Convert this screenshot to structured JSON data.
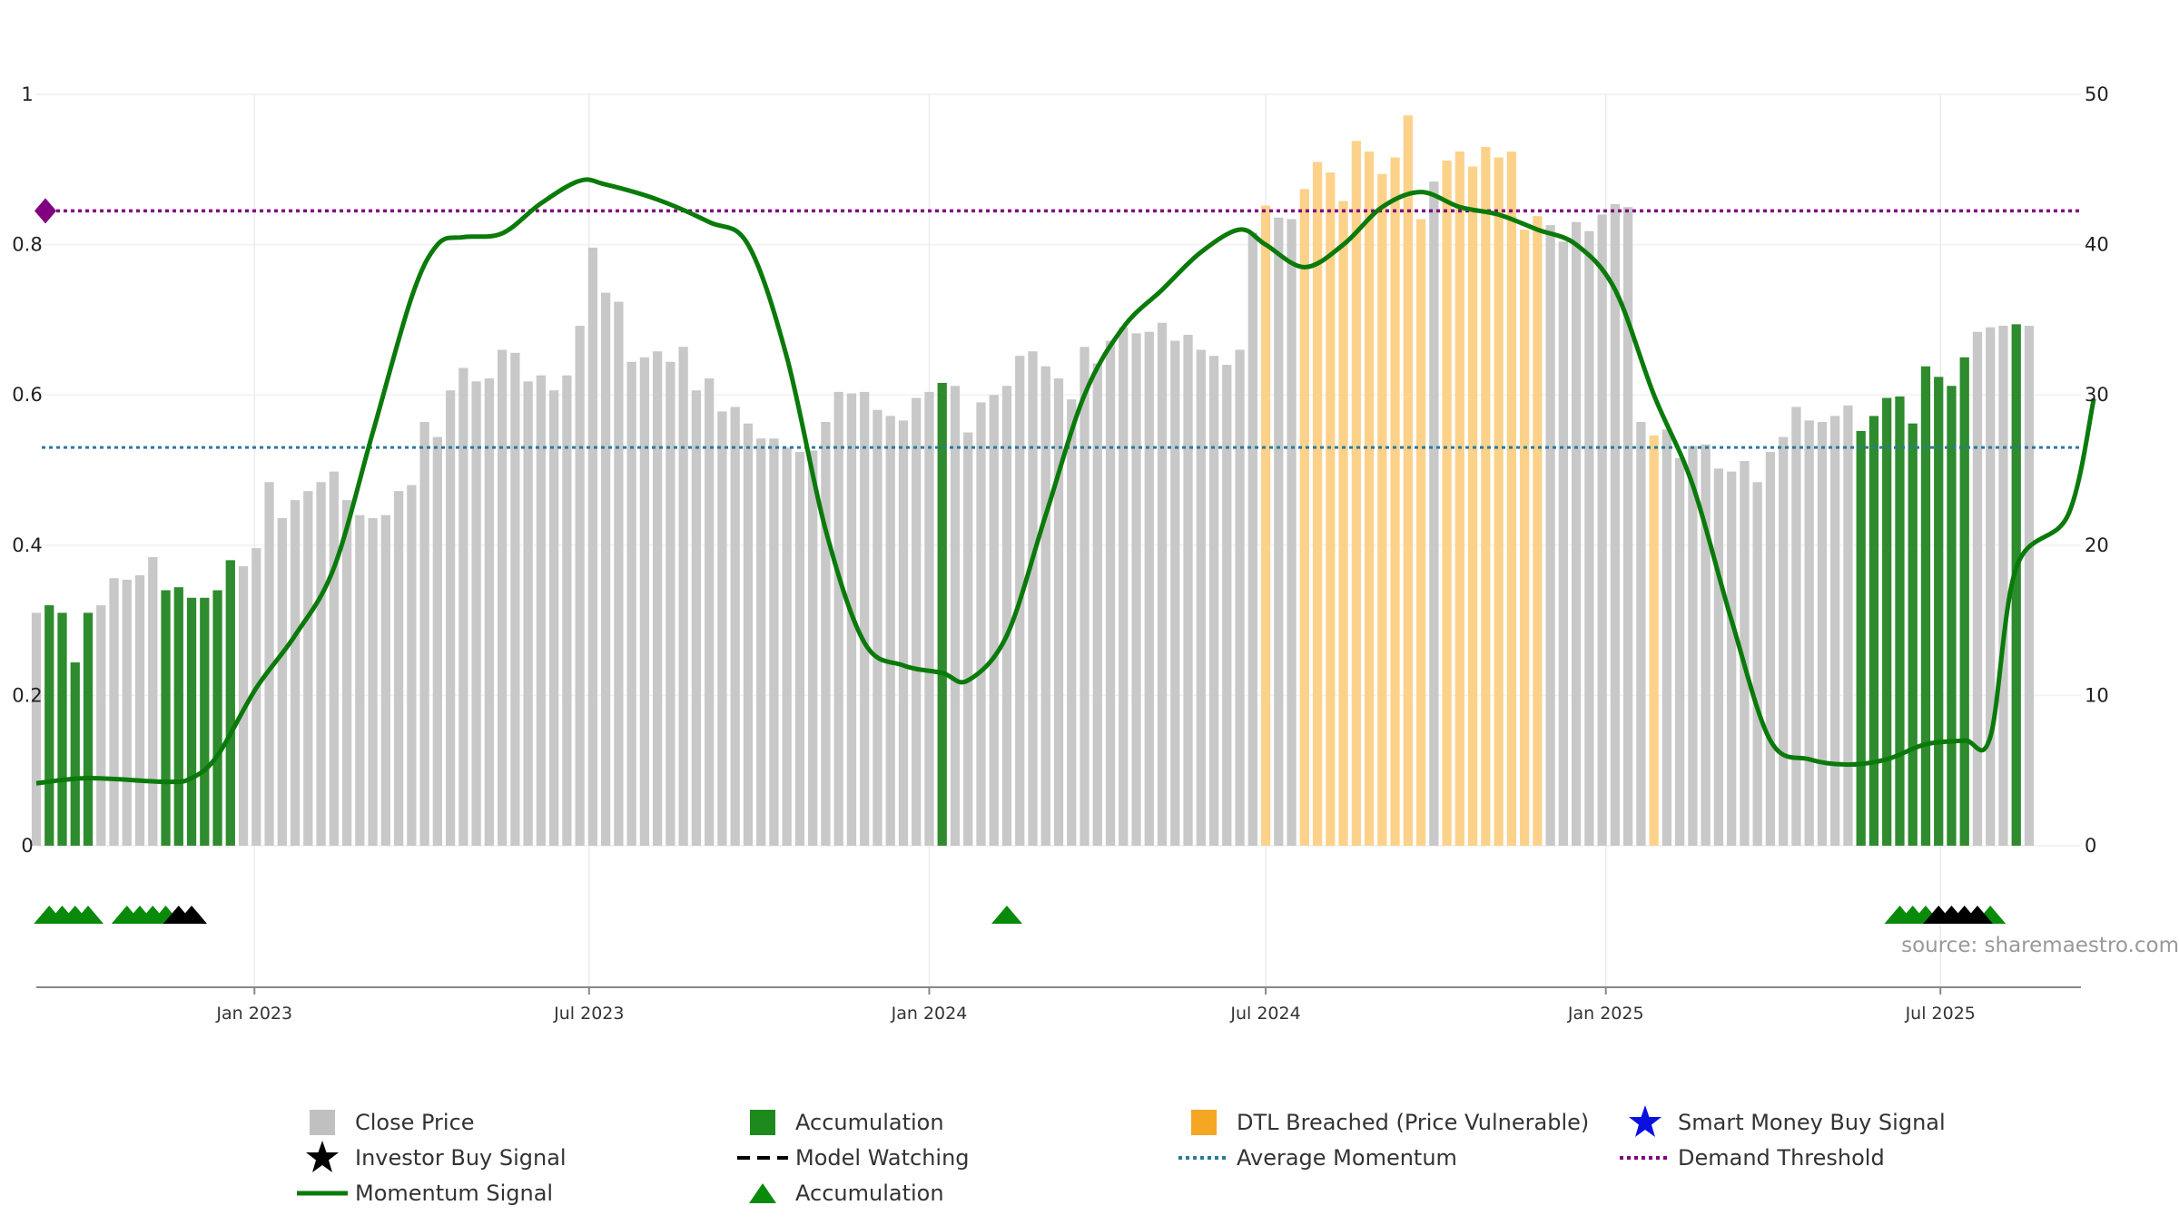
{
  "chart_data": {
    "type": "bar",
    "x_axis": {
      "tick_labels": [
        "Jan 2023",
        "Jul 2023",
        "Jan 2024",
        "Jul 2024",
        "Jan 2025",
        "Jul 2025"
      ],
      "tick_dates": [
        "2023-01-01",
        "2023-07-01",
        "2024-01-01",
        "2024-07-01",
        "2025-01-01",
        "2025-07-01"
      ],
      "range": [
        "2022-09-05",
        "2025-09-15"
      ]
    },
    "y_left": {
      "ticks": [
        0,
        0.2,
        0.4,
        0.6,
        0.8,
        1
      ],
      "tick_labels": [
        "0",
        "0.2",
        "0.4",
        "0.6",
        "0.8",
        "1"
      ],
      "range": [
        0,
        1
      ]
    },
    "y_right": {
      "ticks": [
        0,
        10,
        20,
        30,
        40,
        50
      ],
      "tick_labels": [
        "0",
        "10",
        "20",
        "30",
        "40",
        "50"
      ],
      "range": [
        0,
        50
      ]
    },
    "grid": true,
    "colors": {
      "close": "#c8c8c8",
      "accumulation": "#2e8b2e",
      "dtl": "#fcd28a",
      "momentum": "#0a7a0a",
      "average": "#2a7a9a",
      "threshold": "#800080",
      "marker_green": "#0a8a0a",
      "marker_black": "#000000"
    },
    "bars": {
      "start_date": "2022-09-05",
      "interval_days": 7,
      "close": [
        15.5,
        16,
        15.5,
        12.2,
        15.5,
        16,
        17.8,
        17.7,
        18,
        19.2,
        17,
        17.2,
        16.5,
        16.5,
        17,
        19,
        18.6,
        19.8,
        24.2,
        21.8,
        23,
        23.6,
        24.2,
        24.9,
        23,
        22,
        21.8,
        22,
        23.6,
        24,
        28.2,
        27.2,
        30.3,
        31.8,
        30.9,
        31.1,
        33,
        32.8,
        30.9,
        31.3,
        30.3,
        31.3,
        34.6,
        39.8,
        36.8,
        36.2,
        32.2,
        32.5,
        32.9,
        32.2,
        33.2,
        30.3,
        31.1,
        28.9,
        29.2,
        28.1,
        27.1,
        27.1,
        26.5,
        26.2,
        26.3,
        28.2,
        30.2,
        30.1,
        30.2,
        29,
        28.6,
        28.3,
        29.8,
        30.2,
        30.8,
        30.6,
        27.5,
        29.5,
        30,
        30.6,
        32.6,
        32.9,
        31.9,
        31.1,
        29.7,
        33.2,
        32.1,
        33.6,
        34.5,
        34.1,
        34.2,
        34.8,
        33.6,
        34,
        33,
        32.6,
        32,
        33,
        40.8,
        42.6,
        41.8,
        41.7,
        43.7,
        45.5,
        44.8,
        42.9,
        46.9,
        46.2,
        44.7,
        45.8,
        48.6,
        41.7,
        44.2,
        45.6,
        46.2,
        45.2,
        46.5,
        45.8,
        46.2,
        41,
        41.9,
        41.3,
        40.2,
        41.5,
        40.9,
        42,
        42.7,
        42.5,
        28.2,
        27.3,
        27.7,
        25.8,
        26.6,
        26.7,
        25.1,
        24.9,
        25.6,
        24.2,
        26.2,
        27.2,
        29.2,
        28.3,
        28.2,
        28.6,
        29.3,
        27.6,
        28.6,
        29.8,
        29.9,
        28.1,
        31.9,
        31.2,
        30.6,
        32.5,
        34.2,
        34.5,
        34.6,
        34.7,
        34.6
      ],
      "accumulation": [
        0,
        1,
        1,
        1,
        1,
        0,
        0,
        0,
        0,
        0,
        1,
        1,
        1,
        1,
        1,
        1,
        0,
        0,
        0,
        0,
        0,
        0,
        0,
        0,
        0,
        0,
        0,
        0,
        0,
        0,
        0,
        0,
        0,
        0,
        0,
        0,
        0,
        0,
        0,
        0,
        0,
        0,
        0,
        0,
        0,
        0,
        0,
        0,
        0,
        0,
        0,
        0,
        0,
        0,
        0,
        0,
        0,
        0,
        0,
        0,
        0,
        0,
        0,
        0,
        0,
        0,
        0,
        0,
        0,
        0,
        1,
        0,
        0,
        0,
        0,
        0,
        0,
        0,
        0,
        0,
        0,
        0,
        0,
        0,
        0,
        0,
        0,
        0,
        0,
        0,
        0,
        0,
        0,
        0,
        0,
        0,
        0,
        0,
        0,
        0,
        0,
        0,
        0,
        0,
        0,
        0,
        0,
        0,
        0,
        0,
        0,
        0,
        0,
        0,
        0,
        0,
        0,
        0,
        0,
        0,
        0,
        0,
        0,
        0,
        0,
        0,
        0,
        0,
        0,
        0,
        0,
        0,
        0,
        0,
        0,
        0,
        0,
        0,
        0,
        0,
        0,
        1,
        1,
        1,
        1,
        1,
        1,
        1,
        1,
        1,
        0,
        0,
        0,
        1,
        0,
        0,
        0,
        0,
        0,
        0,
        0
      ],
      "dtl": [
        0,
        0,
        0,
        0,
        0,
        0,
        0,
        0,
        0,
        0,
        0,
        0,
        0,
        0,
        0,
        0,
        0,
        0,
        0,
        0,
        0,
        0,
        0,
        0,
        0,
        0,
        0,
        0,
        0,
        0,
        0,
        0,
        0,
        0,
        0,
        0,
        0,
        0,
        0,
        0,
        0,
        0,
        0,
        0,
        0,
        0,
        0,
        0,
        0,
        0,
        0,
        0,
        0,
        0,
        0,
        0,
        0,
        0,
        0,
        0,
        0,
        0,
        0,
        0,
        0,
        0,
        0,
        0,
        0,
        0,
        0,
        0,
        0,
        0,
        0,
        0,
        0,
        0,
        0,
        0,
        0,
        0,
        0,
        0,
        0,
        0,
        0,
        0,
        0,
        0,
        0,
        0,
        0,
        0,
        0,
        1,
        0,
        0,
        1,
        1,
        1,
        1,
        1,
        1,
        1,
        1,
        1,
        1,
        0,
        1,
        1,
        1,
        1,
        1,
        1,
        1,
        1,
        0,
        0,
        0,
        0,
        0,
        0,
        0,
        0,
        1,
        0,
        0,
        0,
        0,
        0,
        0,
        0,
        0,
        0,
        0,
        0,
        0,
        0,
        0,
        0,
        0,
        0,
        0,
        0,
        0,
        0,
        0,
        0,
        0,
        0,
        0,
        0,
        0,
        0,
        0,
        0,
        0,
        0,
        0,
        0
      ]
    },
    "momentum_signal": {
      "points": [
        [
          "2022-09-05",
          0.083
        ],
        [
          "2022-10-03",
          0.09
        ],
        [
          "2022-11-14",
          0.085
        ],
        [
          "2022-11-28",
          0.09
        ],
        [
          "2022-12-12",
          0.12
        ],
        [
          "2023-01-02",
          0.21
        ],
        [
          "2023-01-23",
          0.28
        ],
        [
          "2023-02-13",
          0.37
        ],
        [
          "2023-03-06",
          0.55
        ],
        [
          "2023-03-27",
          0.73
        ],
        [
          "2023-04-10",
          0.8
        ],
        [
          "2023-04-24",
          0.81
        ],
        [
          "2023-05-15",
          0.815
        ],
        [
          "2023-06-05",
          0.855
        ],
        [
          "2023-06-26",
          0.885
        ],
        [
          "2023-07-10",
          0.88
        ],
        [
          "2023-08-07",
          0.86
        ],
        [
          "2023-09-04",
          0.83
        ],
        [
          "2023-09-25",
          0.8
        ],
        [
          "2023-10-16",
          0.65
        ],
        [
          "2023-11-06",
          0.42
        ],
        [
          "2023-11-27",
          0.27
        ],
        [
          "2023-12-18",
          0.24
        ],
        [
          "2024-01-08",
          0.23
        ],
        [
          "2024-01-22",
          0.22
        ],
        [
          "2024-02-12",
          0.28
        ],
        [
          "2024-03-04",
          0.44
        ],
        [
          "2024-03-25",
          0.6
        ],
        [
          "2024-04-15",
          0.69
        ],
        [
          "2024-05-06",
          0.74
        ],
        [
          "2024-05-27",
          0.79
        ],
        [
          "2024-06-17",
          0.82
        ],
        [
          "2024-07-01",
          0.8
        ],
        [
          "2024-07-22",
          0.77
        ],
        [
          "2024-08-12",
          0.8
        ],
        [
          "2024-09-02",
          0.85
        ],
        [
          "2024-09-23",
          0.87
        ],
        [
          "2024-10-14",
          0.85
        ],
        [
          "2024-11-04",
          0.84
        ],
        [
          "2024-11-25",
          0.82
        ],
        [
          "2024-12-16",
          0.8
        ],
        [
          "2025-01-06",
          0.74
        ],
        [
          "2025-01-27",
          0.6
        ],
        [
          "2025-02-17",
          0.48
        ],
        [
          "2025-03-10",
          0.3
        ],
        [
          "2025-03-31",
          0.14
        ],
        [
          "2025-04-21",
          0.115
        ],
        [
          "2025-05-12",
          0.108
        ],
        [
          "2025-06-02",
          0.115
        ],
        [
          "2025-06-23",
          0.135
        ],
        [
          "2025-07-14",
          0.14
        ],
        [
          "2025-07-28",
          0.145
        ],
        [
          "2025-08-11",
          0.37
        ],
        [
          "2025-09-08",
          0.44
        ],
        [
          "2025-09-22",
          0.595
        ]
      ]
    },
    "average_momentum": 0.53,
    "demand_threshold": 0.845,
    "markers": {
      "accumulation": [
        "2022-09-12",
        "2022-09-19",
        "2022-09-26",
        "2022-10-03",
        "2022-10-24",
        "2022-10-31",
        "2022-11-07",
        "2022-11-14",
        "2024-02-12",
        "2025-06-09",
        "2025-06-16",
        "2025-06-23",
        "2025-07-28"
      ],
      "investor_buy": [
        "2022-11-21",
        "2022-11-28",
        "2025-06-30",
        "2025-07-07",
        "2025-07-14",
        "2025-07-21"
      ]
    },
    "source": "source: sharemaestro.com",
    "legend": [
      {
        "label": "Close Price",
        "symbol": "gray-square"
      },
      {
        "label": "Accumulation",
        "symbol": "green-square"
      },
      {
        "label": "DTL Breached (Price Vulnerable)",
        "symbol": "orange-square"
      },
      {
        "label": "Smart Money Buy Signal",
        "symbol": "blue-star"
      },
      {
        "label": "Investor Buy Signal",
        "symbol": "black-star"
      },
      {
        "label": "Model Watching",
        "symbol": "black-dash"
      },
      {
        "label": "Average Momentum",
        "symbol": "blue-dots"
      },
      {
        "label": "Demand Threshold",
        "symbol": "purple-dots"
      },
      {
        "label": "Momentum Signal",
        "symbol": "green-line"
      },
      {
        "label": "Accumulation",
        "symbol": "green-triangle"
      }
    ]
  }
}
